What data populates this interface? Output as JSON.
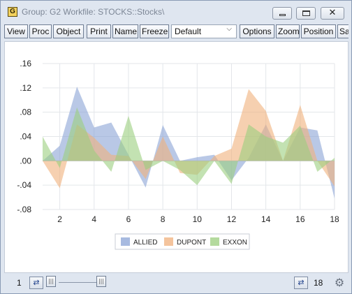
{
  "window": {
    "icon_letter": "G",
    "title": "Group: G2   Workfile: STOCKS::Stocks\\",
    "min_glyph": "",
    "max_glyph": "",
    "close_glyph": "✕"
  },
  "toolbar": {
    "buttons": [
      "View",
      "Proc",
      "Object",
      "Print",
      "Name",
      "Freeze",
      "Options",
      "Zoom",
      "Position",
      "Sa"
    ],
    "select_value": "Default"
  },
  "status": {
    "left_value": "1",
    "right_value": "18"
  },
  "chart_data": {
    "type": "area",
    "x": [
      1,
      2,
      3,
      4,
      5,
      6,
      7,
      8,
      9,
      10,
      11,
      12,
      13,
      14,
      15,
      16,
      17,
      18
    ],
    "x_ticks": [
      "2",
      "4",
      "6",
      "8",
      "10",
      "12",
      "14",
      "16",
      "18"
    ],
    "y_ticks": [
      ".16",
      ".12",
      ".08",
      ".04",
      ".00",
      "-.04",
      "-.08"
    ],
    "ylim": [
      -0.08,
      0.16
    ],
    "grid": true,
    "legend_position": "bottom",
    "series": [
      {
        "name": "ALLIED",
        "color": "#8aa3d6",
        "values": [
          0.0,
          0.025,
          0.122,
          0.055,
          0.063,
          0.01,
          -0.044,
          0.059,
          0.0,
          0.006,
          0.01,
          -0.032,
          0.005,
          0.06,
          0.0,
          0.055,
          0.05,
          -0.062
        ]
      },
      {
        "name": "DUPONT",
        "color": "#f0b07c",
        "values": [
          0.0,
          -0.045,
          0.06,
          0.038,
          0.01,
          0.008,
          -0.03,
          0.04,
          -0.02,
          -0.023,
          0.008,
          0.02,
          0.118,
          0.082,
          0.0,
          0.092,
          0.0,
          -0.042
        ]
      },
      {
        "name": "EXXON",
        "color": "#9bce7e",
        "values": [
          0.04,
          -0.012,
          0.088,
          0.017,
          -0.018,
          0.074,
          -0.015,
          0.0,
          -0.015,
          -0.04,
          0.0,
          -0.038,
          0.06,
          0.04,
          0.03,
          0.058,
          -0.018,
          0.005
        ]
      }
    ]
  }
}
